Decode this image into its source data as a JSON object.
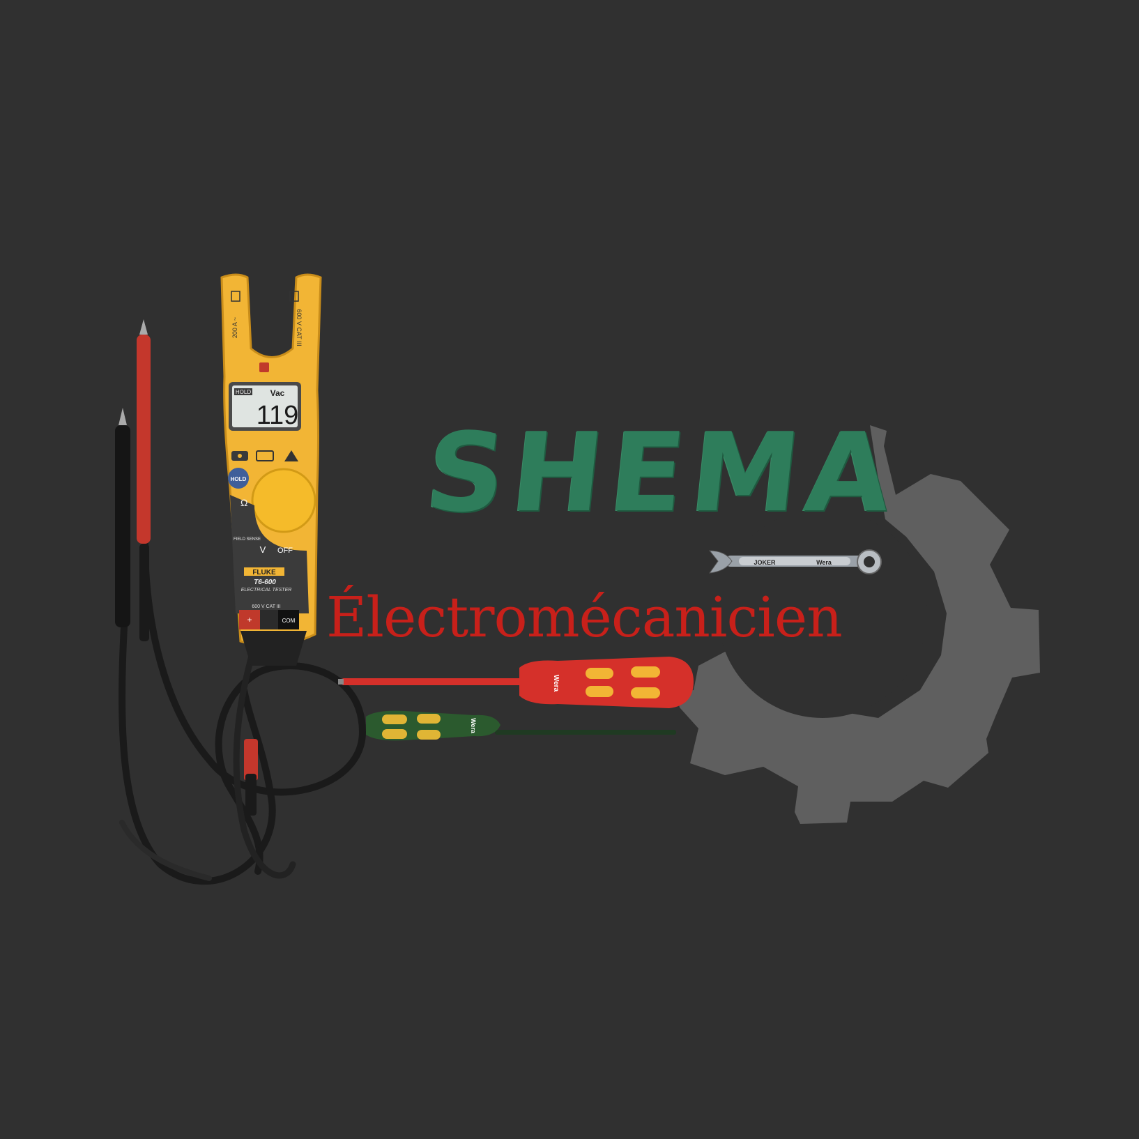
{
  "logo": {
    "brand_name": "SHEMA",
    "tagline": "Électromécanicien"
  },
  "tester": {
    "brand": "FLUKE",
    "model": "T6-600",
    "subtitle": "ELECTRICAL TESTER",
    "display_mode": "HOLD",
    "display_unit": "Vac",
    "display_value": "119",
    "hold_button": "HOLD",
    "off_label": "OFF",
    "field_sense_label": "FIELD SENSE",
    "rating_left": "200 A ~",
    "rating_right": "600 V CAT III",
    "terminal_rating": "600 V CAT III",
    "terminal_com": "COM",
    "terminal_plus": "+"
  },
  "wrench": {
    "marking_1": "JOKER",
    "marking_2": "Wera"
  },
  "screwdrivers": {
    "red_marking": "Wera",
    "green_marking": "Wera"
  },
  "colors": {
    "background": "#303030",
    "gear": "#5f5f5f",
    "brand_green": "#2e7d5b",
    "tagline_red": "#c8201a",
    "tester_yellow": "#f2b535"
  }
}
